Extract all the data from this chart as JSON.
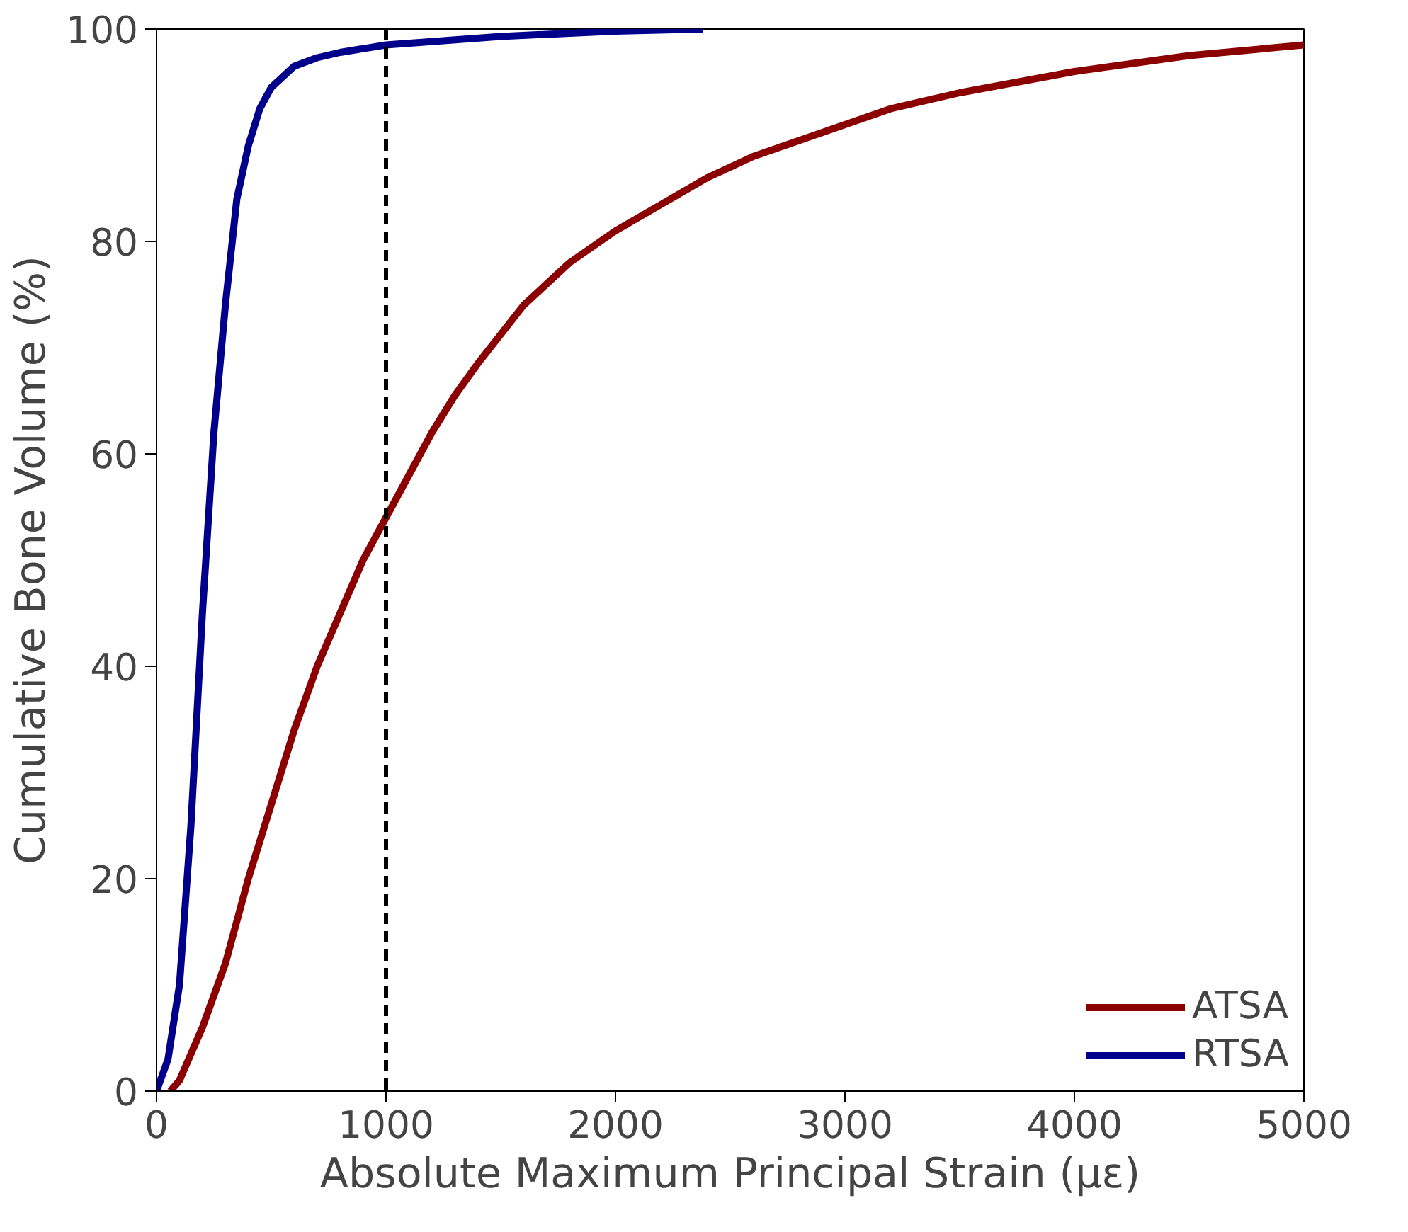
{
  "chart_data": {
    "type": "line",
    "xlabel": "Absolute Maximum Principal Strain (με)",
    "ylabel": "Cumulative Bone Volume (%)",
    "xlim": [
      0,
      5000
    ],
    "ylim": [
      0,
      100
    ],
    "xticks": [
      0,
      1000,
      2000,
      3000,
      4000,
      5000
    ],
    "yticks": [
      0,
      20,
      40,
      60,
      80,
      100
    ],
    "grid": false,
    "legend": "bottom right",
    "line_style": "solid",
    "series": [
      {
        "name": "ATSA",
        "color": "#8b0000",
        "x": [
          60,
          100,
          200,
          300,
          400,
          500,
          600,
          700,
          800,
          900,
          1000,
          1100,
          1200,
          1300,
          1400,
          1600,
          1800,
          2000,
          2200,
          2400,
          2600,
          2800,
          3000,
          3200,
          3500,
          4000,
          4500,
          5000
        ],
        "values": [
          0,
          1,
          6,
          12,
          20,
          27,
          34,
          40,
          45,
          50,
          54,
          58,
          62,
          65.5,
          68.5,
          74,
          78,
          81,
          83.5,
          86,
          88,
          89.5,
          91,
          92.5,
          94,
          96,
          97.5,
          98.5
        ]
      },
      {
        "name": "RTSA",
        "color": "#00008b",
        "x": [
          0,
          50,
          100,
          150,
          200,
          250,
          300,
          350,
          400,
          450,
          500,
          600,
          700,
          800,
          1000,
          1500,
          2000,
          2380
        ],
        "values": [
          0,
          3,
          10,
          25,
          45,
          62,
          74,
          84,
          89,
          92.5,
          94.5,
          96.5,
          97.3,
          97.8,
          98.5,
          99.3,
          99.8,
          100
        ]
      }
    ],
    "ref_lines": [
      {
        "axis": "x",
        "value": 1000,
        "color": "#000000",
        "line_style": "dashed"
      }
    ]
  }
}
